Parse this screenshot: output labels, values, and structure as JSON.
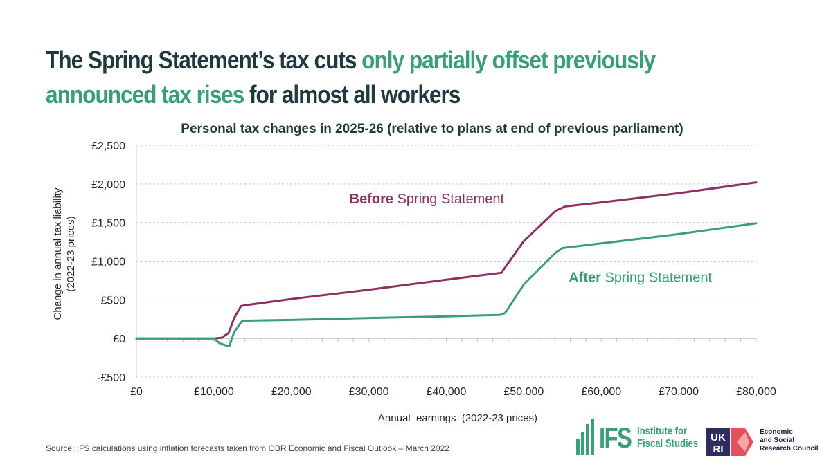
{
  "headline": {
    "part1": "The Spring Statement’s tax cuts ",
    "part2": "only partially offset previously announced tax rises",
    "part3": " for almost all workers"
  },
  "colors": {
    "before": "#8e2f62",
    "after": "#3a9e76",
    "headline_dark": "#1f3a3d",
    "accent": "#3a9e76"
  },
  "chart_data": {
    "type": "line",
    "title": "Personal tax changes in 2025-26 (relative to plans at end of previous parliament)",
    "xlabel": "Annual  earnings  (2022-23 prices)",
    "ylabel": [
      "Change in annual tax liability",
      "(2022-23 prices)"
    ],
    "xlim": [
      0,
      80000
    ],
    "ylim": [
      -500,
      2500
    ],
    "x_ticks": [
      0,
      10000,
      20000,
      30000,
      40000,
      50000,
      60000,
      70000,
      80000
    ],
    "x_tick_labels": [
      "£0",
      "£10,000",
      "£20,000",
      "£30,000",
      "£40,000",
      "£50,000",
      "£60,000",
      "£70,000",
      "£80,000"
    ],
    "y_ticks": [
      -500,
      0,
      500,
      1000,
      1500,
      2000,
      2500
    ],
    "y_tick_labels": [
      "-£500",
      "£0",
      "£500",
      "£1,000",
      "£1,500",
      "£2,000",
      "£2,500"
    ],
    "grid": true,
    "series": [
      {
        "name": "Before Spring Statement",
        "label_bold": "Before",
        "label_rest": " Spring Statement",
        "label_anchor": [
          27500,
          1750
        ],
        "color": "#8e2f62",
        "x": [
          0,
          10000,
          11000,
          11900,
          12600,
          13500,
          14100,
          20000,
          30000,
          40000,
          47100,
          50000,
          54100,
          55400,
          60000,
          70000,
          80000
        ],
        "y": [
          0,
          0,
          10,
          70,
          260,
          420,
          430,
          510,
          630,
          760,
          850,
          1260,
          1650,
          1710,
          1760,
          1880,
          2020
        ]
      },
      {
        "name": "After Spring Statement",
        "label_bold": "After",
        "label_rest": " Spring Statement",
        "label_anchor": [
          55800,
          730
        ],
        "color": "#3a9e76",
        "x": [
          0,
          10000,
          10700,
          11500,
          12000,
          12600,
          13600,
          14100,
          20000,
          30000,
          40000,
          47000,
          47600,
          50000,
          54100,
          55000,
          60000,
          70000,
          80000
        ],
        "y": [
          0,
          0,
          -60,
          -90,
          -100,
          80,
          220,
          230,
          240,
          265,
          285,
          305,
          330,
          700,
          1110,
          1170,
          1230,
          1350,
          1490
        ]
      }
    ]
  },
  "source": "Source: IFS calculations using inflation forecasts taken from OBR Economic and Fiscal Outlook – March 2022",
  "logos": {
    "ifs_wordmark": "IFS",
    "ifs_name": [
      "Institute for",
      "Fiscal Studies"
    ],
    "ukri_mark": "UKRI",
    "esrc_name": [
      "Economic",
      "and Social",
      "Research Council"
    ]
  }
}
